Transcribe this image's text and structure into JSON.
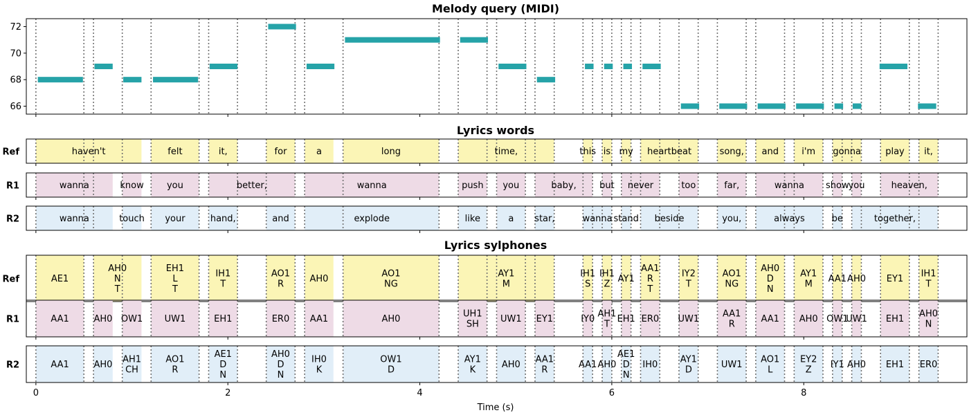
{
  "titles": {
    "melody": "Melody query (MIDI)",
    "words": "Lyrics words",
    "sylphones": "Lyrics sylphones"
  },
  "row_labels": [
    "Ref",
    "R1",
    "R2"
  ],
  "x_axis": {
    "label": "Time (s)",
    "tick_values": [
      0,
      2,
      4,
      6,
      8
    ],
    "tick_labels": [
      "0",
      "2",
      "4",
      "6",
      "8"
    ],
    "range": [
      -0.1,
      9.7
    ]
  },
  "colors": {
    "note": "#26a3a8",
    "ref": "#fbf5b6",
    "r1": "#eedbe6",
    "r2": "#e1eef8",
    "boundary": "#707070",
    "axis": "#000000"
  },
  "chart_data": [
    {
      "type": "gantt",
      "title": "Melody query (MIDI)",
      "xlabel": "",
      "ylabel": "",
      "ylim": [
        65.4,
        72.6
      ],
      "y_ticks": [
        66,
        68,
        70,
        72
      ],
      "y_tick_labels": [
        "66",
        "68",
        "70",
        "72"
      ],
      "notes": [
        {
          "start": 0.02,
          "end": 0.49,
          "pitch": 68
        },
        {
          "start": 0.61,
          "end": 0.8,
          "pitch": 69
        },
        {
          "start": 0.91,
          "end": 1.1,
          "pitch": 68
        },
        {
          "start": 1.22,
          "end": 1.69,
          "pitch": 68
        },
        {
          "start": 1.81,
          "end": 2.1,
          "pitch": 69
        },
        {
          "start": 2.42,
          "end": 2.71,
          "pitch": 72
        },
        {
          "start": 2.82,
          "end": 3.11,
          "pitch": 69
        },
        {
          "start": 3.22,
          "end": 4.21,
          "pitch": 71
        },
        {
          "start": 4.42,
          "end": 4.71,
          "pitch": 71
        },
        {
          "start": 4.82,
          "end": 5.11,
          "pitch": 69
        },
        {
          "start": 5.22,
          "end": 5.41,
          "pitch": 68
        },
        {
          "start": 5.72,
          "end": 5.81,
          "pitch": 69
        },
        {
          "start": 5.92,
          "end": 6.01,
          "pitch": 69
        },
        {
          "start": 6.12,
          "end": 6.21,
          "pitch": 69
        },
        {
          "start": 6.32,
          "end": 6.51,
          "pitch": 69
        },
        {
          "start": 6.72,
          "end": 6.91,
          "pitch": 66
        },
        {
          "start": 7.12,
          "end": 7.41,
          "pitch": 66
        },
        {
          "start": 7.52,
          "end": 7.81,
          "pitch": 66
        },
        {
          "start": 7.92,
          "end": 8.21,
          "pitch": 66
        },
        {
          "start": 8.32,
          "end": 8.41,
          "pitch": 66
        },
        {
          "start": 8.51,
          "end": 8.6,
          "pitch": 66
        },
        {
          "start": 8.79,
          "end": 9.08,
          "pitch": 69
        },
        {
          "start": 9.19,
          "end": 9.38,
          "pitch": 66
        }
      ],
      "boundaries": [
        0.0,
        0.5,
        0.6,
        0.9,
        1.2,
        1.7,
        1.8,
        2.1,
        2.4,
        2.7,
        2.8,
        3.2,
        4.2,
        4.4,
        4.7,
        4.8,
        5.1,
        5.2,
        5.4,
        5.7,
        5.8,
        5.9,
        6.0,
        6.1,
        6.2,
        6.3,
        6.5,
        6.7,
        6.9,
        7.1,
        7.4,
        7.5,
        7.8,
        7.9,
        8.2,
        8.3,
        8.4,
        8.5,
        8.6,
        8.8,
        9.1,
        9.2,
        9.4
      ]
    },
    {
      "type": "segments",
      "title": "Lyrics words",
      "xlabel": "",
      "ylabel": "",
      "rows": [
        {
          "name": "Ref",
          "segments": [
            {
              "start": 0.0,
              "end": 1.1,
              "label": "haven't"
            },
            {
              "start": 1.2,
              "end": 1.7,
              "label": "felt"
            },
            {
              "start": 1.8,
              "end": 2.1,
              "label": "it,"
            },
            {
              "start": 2.4,
              "end": 2.7,
              "label": "for"
            },
            {
              "start": 2.8,
              "end": 3.1,
              "label": "a"
            },
            {
              "start": 3.2,
              "end": 4.2,
              "label": "long"
            },
            {
              "start": 4.4,
              "end": 5.4,
              "label": "time,"
            },
            {
              "start": 5.7,
              "end": 5.8,
              "label": "this"
            },
            {
              "start": 5.9,
              "end": 6.0,
              "label": "is"
            },
            {
              "start": 6.1,
              "end": 6.2,
              "label": "my"
            },
            {
              "start": 6.3,
              "end": 6.9,
              "label": "heartbeat"
            },
            {
              "start": 7.1,
              "end": 7.4,
              "label": "song,"
            },
            {
              "start": 7.5,
              "end": 7.8,
              "label": "and"
            },
            {
              "start": 7.9,
              "end": 8.2,
              "label": "i'm"
            },
            {
              "start": 8.3,
              "end": 8.6,
              "label": "gonna"
            },
            {
              "start": 8.8,
              "end": 9.1,
              "label": "play"
            },
            {
              "start": 9.2,
              "end": 9.4,
              "label": "it,"
            }
          ]
        },
        {
          "name": "R1",
          "segments": [
            {
              "start": 0.0,
              "end": 0.8,
              "label": "wanna"
            },
            {
              "start": 0.9,
              "end": 1.1,
              "label": "know"
            },
            {
              "start": 1.2,
              "end": 1.7,
              "label": "you"
            },
            {
              "start": 1.8,
              "end": 2.7,
              "label": "better,"
            },
            {
              "start": 2.8,
              "end": 4.2,
              "label": "wanna"
            },
            {
              "start": 4.4,
              "end": 4.7,
              "label": "push"
            },
            {
              "start": 4.8,
              "end": 5.1,
              "label": "you"
            },
            {
              "start": 5.2,
              "end": 5.8,
              "label": "baby,"
            },
            {
              "start": 5.9,
              "end": 6.0,
              "label": "but"
            },
            {
              "start": 6.1,
              "end": 6.5,
              "label": "never"
            },
            {
              "start": 6.7,
              "end": 6.9,
              "label": "too"
            },
            {
              "start": 7.1,
              "end": 7.4,
              "label": "far,"
            },
            {
              "start": 7.5,
              "end": 8.2,
              "label": "wanna"
            },
            {
              "start": 8.3,
              "end": 8.4,
              "label": "show"
            },
            {
              "start": 8.5,
              "end": 8.6,
              "label": "you"
            },
            {
              "start": 8.8,
              "end": 9.4,
              "label": "heaven,"
            }
          ]
        },
        {
          "name": "R2",
          "segments": [
            {
              "start": 0.0,
              "end": 0.8,
              "label": "wanna"
            },
            {
              "start": 0.9,
              "end": 1.1,
              "label": "touch"
            },
            {
              "start": 1.2,
              "end": 1.7,
              "label": "your"
            },
            {
              "start": 1.8,
              "end": 2.1,
              "label": "hand,"
            },
            {
              "start": 2.4,
              "end": 2.7,
              "label": "and"
            },
            {
              "start": 2.8,
              "end": 4.2,
              "label": "explode"
            },
            {
              "start": 4.4,
              "end": 4.7,
              "label": "like"
            },
            {
              "start": 4.8,
              "end": 5.1,
              "label": "a"
            },
            {
              "start": 5.2,
              "end": 5.4,
              "label": "star,"
            },
            {
              "start": 5.7,
              "end": 6.0,
              "label": "wanna"
            },
            {
              "start": 6.1,
              "end": 6.2,
              "label": "stand"
            },
            {
              "start": 6.3,
              "end": 6.9,
              "label": "beside"
            },
            {
              "start": 7.1,
              "end": 7.4,
              "label": "you,"
            },
            {
              "start": 7.5,
              "end": 8.2,
              "label": "always"
            },
            {
              "start": 8.3,
              "end": 8.4,
              "label": "be"
            },
            {
              "start": 8.5,
              "end": 9.4,
              "label": "together,"
            }
          ]
        }
      ]
    },
    {
      "type": "segments",
      "title": "Lyrics sylphones",
      "xlabel": "Time (s)",
      "ylabel": "",
      "rows": [
        {
          "name": "Ref",
          "segments": [
            {
              "start": 0.0,
              "end": 0.5,
              "label": "AE1"
            },
            {
              "start": 0.6,
              "end": 1.1,
              "label": "AH0\nN\nT"
            },
            {
              "start": 1.2,
              "end": 1.7,
              "label": "EH1\nL\nT"
            },
            {
              "start": 1.8,
              "end": 2.1,
              "label": "IH1\nT"
            },
            {
              "start": 2.4,
              "end": 2.7,
              "label": "AO1\nR"
            },
            {
              "start": 2.8,
              "end": 3.1,
              "label": "AH0"
            },
            {
              "start": 3.2,
              "end": 4.2,
              "label": "AO1\nNG"
            },
            {
              "start": 4.4,
              "end": 5.4,
              "label": "AY1\nM"
            },
            {
              "start": 5.7,
              "end": 5.8,
              "label": "IH1\nS"
            },
            {
              "start": 5.9,
              "end": 6.0,
              "label": "IH1\nZ"
            },
            {
              "start": 6.1,
              "end": 6.2,
              "label": "AY1"
            },
            {
              "start": 6.3,
              "end": 6.5,
              "label": "AA1\nR\nT"
            },
            {
              "start": 6.7,
              "end": 6.9,
              "label": "IY2\nT"
            },
            {
              "start": 7.1,
              "end": 7.4,
              "label": "AO1\nNG"
            },
            {
              "start": 7.5,
              "end": 7.8,
              "label": "AH0\nD\nN"
            },
            {
              "start": 7.9,
              "end": 8.2,
              "label": "AY1\nM"
            },
            {
              "start": 8.3,
              "end": 8.4,
              "label": "AA1"
            },
            {
              "start": 8.5,
              "end": 8.6,
              "label": "AH0"
            },
            {
              "start": 8.8,
              "end": 9.1,
              "label": "EY1"
            },
            {
              "start": 9.2,
              "end": 9.4,
              "label": "IH1\nT"
            }
          ]
        },
        {
          "name": "R1",
          "segments": [
            {
              "start": 0.0,
              "end": 0.5,
              "label": "AA1"
            },
            {
              "start": 0.6,
              "end": 0.8,
              "label": "AH0"
            },
            {
              "start": 0.9,
              "end": 1.1,
              "label": "OW1"
            },
            {
              "start": 1.2,
              "end": 1.7,
              "label": "UW1"
            },
            {
              "start": 1.8,
              "end": 2.1,
              "label": "EH1"
            },
            {
              "start": 2.4,
              "end": 2.7,
              "label": "ER0"
            },
            {
              "start": 2.8,
              "end": 3.1,
              "label": "AA1"
            },
            {
              "start": 3.2,
              "end": 4.2,
              "label": "AH0"
            },
            {
              "start": 4.4,
              "end": 4.7,
              "label": "UH1\nSH"
            },
            {
              "start": 4.8,
              "end": 5.1,
              "label": "UW1"
            },
            {
              "start": 5.2,
              "end": 5.4,
              "label": "EY1"
            },
            {
              "start": 5.7,
              "end": 5.8,
              "label": "IY0"
            },
            {
              "start": 5.9,
              "end": 6.0,
              "label": "AH1\nT"
            },
            {
              "start": 6.1,
              "end": 6.2,
              "label": "EH1"
            },
            {
              "start": 6.3,
              "end": 6.5,
              "label": "ER0"
            },
            {
              "start": 6.7,
              "end": 6.9,
              "label": "UW1"
            },
            {
              "start": 7.1,
              "end": 7.4,
              "label": "AA1\nR"
            },
            {
              "start": 7.5,
              "end": 7.8,
              "label": "AA1"
            },
            {
              "start": 7.9,
              "end": 8.2,
              "label": "AH0"
            },
            {
              "start": 8.3,
              "end": 8.4,
              "label": "OW1"
            },
            {
              "start": 8.5,
              "end": 8.6,
              "label": "UW1"
            },
            {
              "start": 8.8,
              "end": 9.1,
              "label": "EH1"
            },
            {
              "start": 9.2,
              "end": 9.4,
              "label": "AH0\nN"
            }
          ]
        },
        {
          "name": "R2",
          "segments": [
            {
              "start": 0.0,
              "end": 0.5,
              "label": "AA1"
            },
            {
              "start": 0.6,
              "end": 0.8,
              "label": "AH0"
            },
            {
              "start": 0.9,
              "end": 1.1,
              "label": "AH1\nCH"
            },
            {
              "start": 1.2,
              "end": 1.7,
              "label": "AO1\nR"
            },
            {
              "start": 1.8,
              "end": 2.1,
              "label": "AE1\nD\nN"
            },
            {
              "start": 2.4,
              "end": 2.7,
              "label": "AH0\nD\nN"
            },
            {
              "start": 2.8,
              "end": 3.1,
              "label": "IH0\nK"
            },
            {
              "start": 3.2,
              "end": 4.2,
              "label": "OW1\nD"
            },
            {
              "start": 4.4,
              "end": 4.7,
              "label": "AY1\nK"
            },
            {
              "start": 4.8,
              "end": 5.1,
              "label": "AH0"
            },
            {
              "start": 5.2,
              "end": 5.4,
              "label": "AA1\nR"
            },
            {
              "start": 5.7,
              "end": 5.8,
              "label": "AA1"
            },
            {
              "start": 5.9,
              "end": 6.0,
              "label": "AH0"
            },
            {
              "start": 6.1,
              "end": 6.2,
              "label": "AE1\nD\nN"
            },
            {
              "start": 6.3,
              "end": 6.5,
              "label": "IH0"
            },
            {
              "start": 6.7,
              "end": 6.9,
              "label": "AY1\nD"
            },
            {
              "start": 7.1,
              "end": 7.4,
              "label": "UW1"
            },
            {
              "start": 7.5,
              "end": 7.8,
              "label": "AO1\nL"
            },
            {
              "start": 7.9,
              "end": 8.2,
              "label": "EY2\nZ"
            },
            {
              "start": 8.3,
              "end": 8.4,
              "label": "IY1"
            },
            {
              "start": 8.5,
              "end": 8.6,
              "label": "AH0"
            },
            {
              "start": 8.8,
              "end": 9.1,
              "label": "EH1"
            },
            {
              "start": 9.2,
              "end": 9.4,
              "label": "ER0"
            }
          ]
        }
      ]
    }
  ]
}
